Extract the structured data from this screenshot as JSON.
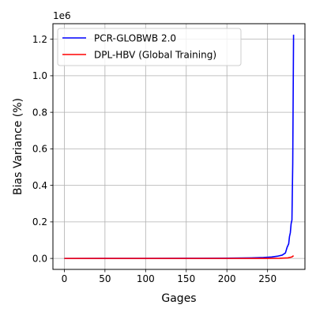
{
  "chart_data": {
    "type": "line",
    "title": "",
    "xlabel": "Gages",
    "ylabel": "Bias Variance (%)",
    "y_offset_label": "1e6",
    "xlim": [
      -14,
      296
    ],
    "ylim": [
      -60000,
      1285000
    ],
    "x_ticks": [
      0,
      50,
      100,
      150,
      200,
      250
    ],
    "x_tick_labels": [
      "0",
      "50",
      "100",
      "150",
      "200",
      "250"
    ],
    "y_ticks": [
      0,
      200000,
      400000,
      600000,
      800000,
      1000000,
      1200000
    ],
    "y_tick_labels": [
      "0.0",
      "0.2",
      "0.4",
      "0.6",
      "0.8",
      "1.0",
      "1.2"
    ],
    "grid": true,
    "legend_position": "top-left",
    "series": [
      {
        "name": "PCR-GLOBWB 2.0",
        "color": "#0000ff",
        "x": [
          0,
          50,
          100,
          150,
          200,
          230,
          245,
          255,
          262,
          268,
          272,
          274,
          276,
          277,
          278,
          279,
          280,
          281,
          282
        ],
        "y": [
          0,
          100,
          300,
          700,
          1500,
          3000,
          5000,
          8000,
          12000,
          18000,
          30000,
          60000,
          80000,
          120000,
          140000,
          190000,
          210000,
          520000,
          1225000
        ]
      },
      {
        "name": "DPL-HBV (Global Training)",
        "color": "#ff0000",
        "x": [
          0,
          50,
          100,
          150,
          200,
          250,
          265,
          275,
          280,
          282
        ],
        "y": [
          0,
          0,
          0,
          0,
          0,
          200,
          1000,
          3000,
          8000,
          15000
        ]
      }
    ]
  }
}
